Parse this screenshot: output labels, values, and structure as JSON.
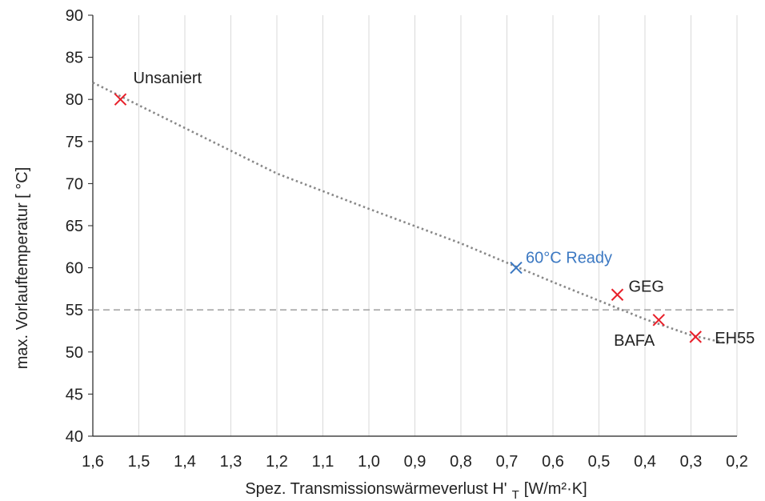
{
  "chart_data": {
    "type": "scatter",
    "title": "",
    "xlabel": "Spez. Transmissionswärmeverlust H'",
    "xlabel_sub": "T",
    "xlabel_unit": "[W/m²·K]",
    "ylabel": "max. Vorlauftemperatur [ °C]",
    "xlim": [
      1.6,
      0.2
    ],
    "x_reversed": true,
    "ylim": [
      40,
      90
    ],
    "xticks": [
      1.6,
      1.5,
      1.4,
      1.3,
      1.2,
      1.1,
      1.0,
      0.9,
      0.8,
      0.7,
      0.6,
      0.5,
      0.4,
      0.3,
      0.2
    ],
    "xtick_labels": [
      "1,6",
      "1,5",
      "1,4",
      "1,3",
      "1,2",
      "1,1",
      "1,0",
      "0,9",
      "0,8",
      "0,7",
      "0,6",
      "0,5",
      "0,4",
      "0,3",
      "0,2"
    ],
    "yticks": [
      40,
      45,
      50,
      55,
      60,
      65,
      70,
      75,
      80,
      85,
      90
    ],
    "ytick_labels": [
      "40",
      "45",
      "50",
      "55",
      "60",
      "65",
      "70",
      "75",
      "80",
      "85",
      "90"
    ],
    "grid": "vertical",
    "points": [
      {
        "label": "Unsaniert",
        "x": 1.54,
        "y": 80.0,
        "color": "#e8202a"
      },
      {
        "label": "60°C Ready",
        "x": 0.68,
        "y": 60.0,
        "color": "#3b78c2"
      },
      {
        "label": "GEG",
        "x": 0.46,
        "y": 56.8,
        "color": "#e8202a"
      },
      {
        "label": "BAFA",
        "x": 0.37,
        "y": 53.8,
        "color": "#e8202a"
      },
      {
        "label": "EH55",
        "x": 0.29,
        "y": 51.8,
        "color": "#e8202a"
      }
    ],
    "trendline": {
      "style": "dotted",
      "color": "#888888",
      "x": [
        1.6,
        1.4,
        1.2,
        1.0,
        0.8,
        0.6,
        0.5,
        0.4,
        0.3,
        0.22
      ],
      "y": [
        82.0,
        76.6,
        71.2,
        67.0,
        62.9,
        58.3,
        56.1,
        53.9,
        52.0,
        51.0
      ]
    },
    "reference_line": {
      "y": 55,
      "style": "dashed",
      "color": "#a6a6a6"
    },
    "colors": {
      "axis": "#222222",
      "grid": "#d9d9d9",
      "text": "#222222"
    }
  }
}
